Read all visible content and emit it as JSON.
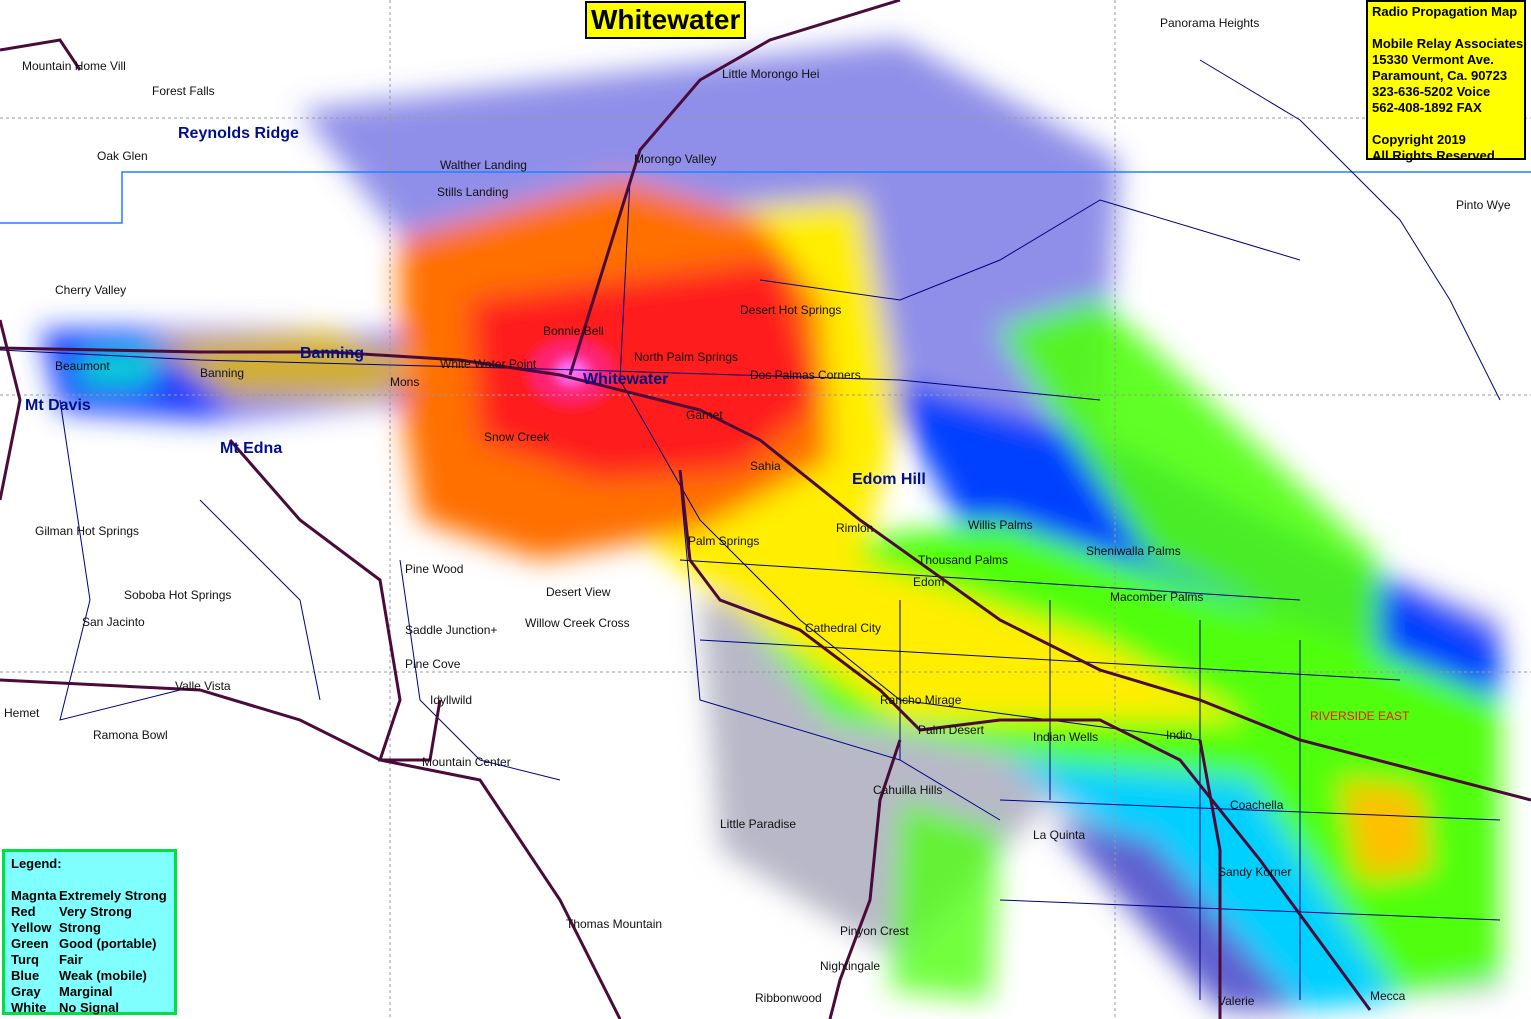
{
  "map": {
    "title": "Whitewater",
    "places": [
      "Mountain Home Vill",
      "Forest Falls",
      "Reynolds Ridge",
      "Oak Glen",
      "Little Morongo Hei",
      "Morongo Valley",
      "Panorama Heights",
      "Pinto Wye",
      "Walther Landing",
      "Stills Landing",
      "Cherry Valley",
      "Beaumont",
      "Banning",
      "Banning",
      "Mons",
      "White Water Point",
      "Bonnie Bell",
      "North Palm Springs",
      "Desert Hot Springs",
      "Dos Palmas Corners",
      "Whitewater",
      "Garnet",
      "Mt Davis",
      "Snow Creek",
      "Mt Edna",
      "Sahia",
      "Edom Hill",
      "Rimlon",
      "Willis Palms",
      "Gilman Hot Springs",
      "Palm Springs",
      "Thousand Palms",
      "Sheniwalla Palms",
      "Pine Wood",
      "Edom",
      "Desert View",
      "Soboba Hot Springs",
      "Macomber Palms",
      "San Jacinto",
      "Willow Creek Cross",
      "Saddle Junction+",
      "Cathedral City",
      "Pine Cove",
      "Valle Vista",
      "Hemet",
      "Idyllwild",
      "Rancho Mirage",
      "RIVERSIDE EAST",
      "Ramona Bowl",
      "Palm Desert",
      "Indian Wells",
      "Indio",
      "Mountain Center",
      "Cahuilla Hills",
      "Coachella",
      "Little Paradise",
      "La Quinta",
      "Sandy Korner",
      "Thomas Mountain",
      "Pinyon Crest",
      "Nightingale",
      "Ribbonwood",
      "Valerie",
      "Mecca"
    ]
  },
  "info": {
    "heading": "Radio Propagation Map",
    "company": "Mobile Relay Associates",
    "street": "15330 Vermont Ave.",
    "city": "Paramount, Ca.  90723",
    "voice": "323-636-5202 Voice",
    "fax": "562-408-1892 FAX",
    "copyright": "Copyright 2019",
    "rights": "All Rights Reserved"
  },
  "legend": {
    "title": "Legend:",
    "items": [
      {
        "color": "Magnta",
        "meaning": "Extremely Strong",
        "hex": "#ff00ff"
      },
      {
        "color": "Red",
        "meaning": "Very Strong",
        "hex": "#ff0000"
      },
      {
        "color": "Yellow",
        "meaning": "Strong",
        "hex": "#ffff00"
      },
      {
        "color": "Green",
        "meaning": "Good (portable)",
        "hex": "#40ff00"
      },
      {
        "color": "Turq",
        "meaning": "Fair",
        "hex": "#00ffff"
      },
      {
        "color": "Blue",
        "meaning": "Weak (mobile)",
        "hex": "#0020ff"
      },
      {
        "color": "Gray",
        "meaning": "Marginal",
        "hex": "#a0a0a0"
      },
      {
        "color": "White",
        "meaning": "No Signal",
        "hex": "#ffffff"
      }
    ]
  }
}
